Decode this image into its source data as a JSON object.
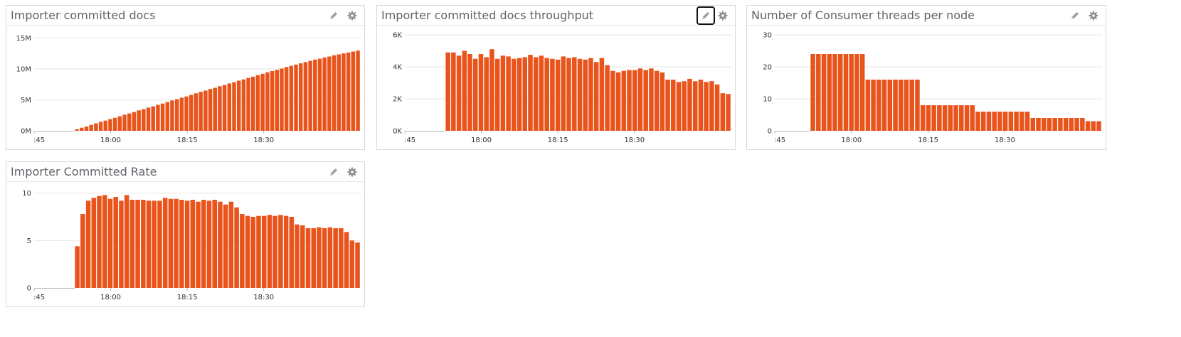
{
  "colors": {
    "bar": "#e8541c",
    "axis": "#bbbbbb",
    "grid": "#e6e6e6",
    "text": "#333333"
  },
  "panels": [
    {
      "title": "Importer committed docs",
      "edit_icon": "pencil-icon",
      "settings_icon": "gear-icon",
      "chart_data": {
        "type": "bar",
        "title": "Importer committed docs",
        "x_tick_labels": [
          ":45",
          "18:00",
          "18:15",
          "18:30"
        ],
        "y_tick_labels": [
          "0M",
          "5M",
          "10M",
          "15M"
        ],
        "y_ticks": [
          0,
          5,
          10,
          15
        ],
        "ylim": [
          0,
          15.5
        ],
        "x_range": [
          "17:45",
          "18:49"
        ],
        "bar_start": "17:53",
        "unit": "M",
        "grid": true,
        "values": [
          0.25,
          0.5,
          0.7,
          0.95,
          1.2,
          1.45,
          1.65,
          1.9,
          2.1,
          2.35,
          2.6,
          2.8,
          3.05,
          3.3,
          3.5,
          3.75,
          3.95,
          4.2,
          4.4,
          4.65,
          4.9,
          5.1,
          5.35,
          5.55,
          5.8,
          6.05,
          6.3,
          6.5,
          6.75,
          6.95,
          7.2,
          7.4,
          7.65,
          7.85,
          8.1,
          8.3,
          8.55,
          8.75,
          9.0,
          9.2,
          9.45,
          9.65,
          9.85,
          10.05,
          10.3,
          10.5,
          10.7,
          10.9,
          11.1,
          11.3,
          11.5,
          11.65,
          11.85,
          12.0,
          12.2,
          12.35,
          12.5,
          12.65,
          12.8,
          12.95
        ]
      }
    },
    {
      "title": "Importer committed docs throughput",
      "edit_icon": "pencil-icon",
      "settings_icon": "gear-icon",
      "chart_data": {
        "type": "bar",
        "title": "Importer committed docs throughput",
        "x_tick_labels": [
          ":45",
          "18:00",
          "18:15",
          "18:30"
        ],
        "y_tick_labels": [
          "0K",
          "2K",
          "4K",
          "6K"
        ],
        "y_ticks": [
          0,
          2,
          4,
          6
        ],
        "ylim": [
          0,
          6
        ],
        "x_range": [
          "17:45",
          "18:49"
        ],
        "bar_start": "17:53",
        "unit": "K",
        "grid": true,
        "values": [
          4.9,
          4.9,
          4.7,
          5.0,
          4.8,
          4.5,
          4.8,
          4.6,
          5.1,
          4.5,
          4.7,
          4.65,
          4.5,
          4.55,
          4.6,
          4.75,
          4.6,
          4.7,
          4.55,
          4.5,
          4.45,
          4.65,
          4.55,
          4.6,
          4.5,
          4.45,
          4.55,
          4.3,
          4.55,
          4.1,
          3.75,
          3.65,
          3.75,
          3.8,
          3.8,
          3.9,
          3.8,
          3.9,
          3.75,
          3.65,
          3.2,
          3.2,
          3.05,
          3.1,
          3.25,
          3.1,
          3.2,
          3.05,
          3.1,
          2.9,
          2.35,
          2.3
        ]
      }
    },
    {
      "title": "Number of Consumer threads per node",
      "edit_icon": "pencil-icon",
      "settings_icon": "gear-icon",
      "chart_data": {
        "type": "bar",
        "title": "Number of Consumer threads per node",
        "x_tick_labels": [
          ":45",
          "18:00",
          "18:15",
          "18:30"
        ],
        "y_tick_labels": [
          "0",
          "10",
          "20",
          "30"
        ],
        "y_ticks": [
          0,
          10,
          20,
          30
        ],
        "ylim": [
          0,
          30
        ],
        "x_range": [
          "17:45",
          "18:49"
        ],
        "bar_start": "17:52",
        "grid": true,
        "values": [
          24,
          24,
          24,
          24,
          24,
          24,
          24,
          24,
          24,
          24,
          16,
          16,
          16,
          16,
          16,
          16,
          16,
          16,
          16,
          16,
          8,
          8,
          8,
          8,
          8,
          8,
          8,
          8,
          8,
          8,
          6,
          6,
          6,
          6,
          6,
          6,
          6,
          6,
          6,
          6,
          4,
          4,
          4,
          4,
          4,
          4,
          4,
          4,
          4,
          4,
          3,
          3,
          3
        ]
      }
    },
    {
      "title": "Importer Committed Rate",
      "edit_icon": "pencil-icon",
      "settings_icon": "gear-icon",
      "chart_data": {
        "type": "bar",
        "title": "Importer Committed Rate",
        "x_tick_labels": [
          ":45",
          "18:00",
          "18:15",
          "18:30"
        ],
        "y_tick_labels": [
          "0",
          "5",
          "10"
        ],
        "y_ticks": [
          0,
          5,
          10
        ],
        "ylim": [
          0,
          10.2
        ],
        "x_range": [
          "17:45",
          "18:49"
        ],
        "bar_start": "17:53",
        "grid": true,
        "values": [
          4.4,
          7.8,
          9.2,
          9.5,
          9.7,
          9.8,
          9.4,
          9.6,
          9.2,
          9.8,
          9.3,
          9.3,
          9.3,
          9.2,
          9.2,
          9.2,
          9.5,
          9.4,
          9.4,
          9.3,
          9.2,
          9.3,
          9.1,
          9.3,
          9.2,
          9.3,
          9.1,
          8.8,
          9.1,
          8.5,
          7.8,
          7.6,
          7.5,
          7.6,
          7.6,
          7.7,
          7.6,
          7.7,
          7.6,
          7.5,
          6.7,
          6.6,
          6.3,
          6.3,
          6.4,
          6.3,
          6.4,
          6.3,
          6.3,
          5.9,
          5.0,
          4.8
        ]
      }
    }
  ]
}
